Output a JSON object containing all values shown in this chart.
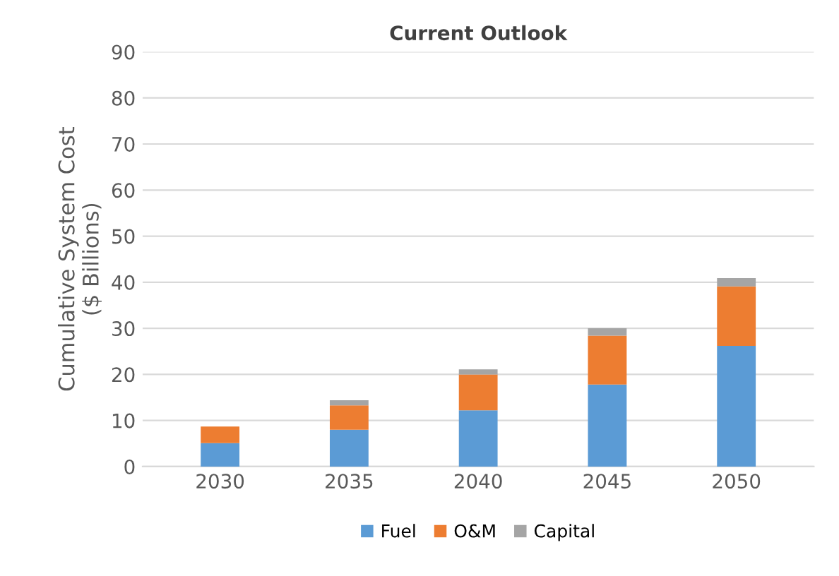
{
  "chart_data": {
    "type": "bar",
    "stacked": true,
    "title": "Current Outlook",
    "ylabel": "Cumulative System Cost\n($ Billions)",
    "categories": [
      "2030",
      "2035",
      "2040",
      "2045",
      "2050"
    ],
    "series": [
      {
        "name": "Fuel",
        "color": "#5b9bd5",
        "values": [
          5.1,
          8.0,
          12.2,
          17.8,
          26.2
        ]
      },
      {
        "name": "O&M",
        "color": "#ed7d31",
        "values": [
          3.6,
          5.3,
          7.8,
          10.6,
          12.9
        ]
      },
      {
        "name": "Capital",
        "color": "#a5a5a5",
        "values": [
          null,
          1.1,
          1.1,
          1.6,
          1.8
        ]
      }
    ],
    "ylim": [
      0,
      90
    ],
    "yticks": [
      0,
      10,
      20,
      30,
      40,
      50,
      60,
      70,
      80,
      90
    ],
    "grid": "y",
    "legend": "bottom"
  }
}
